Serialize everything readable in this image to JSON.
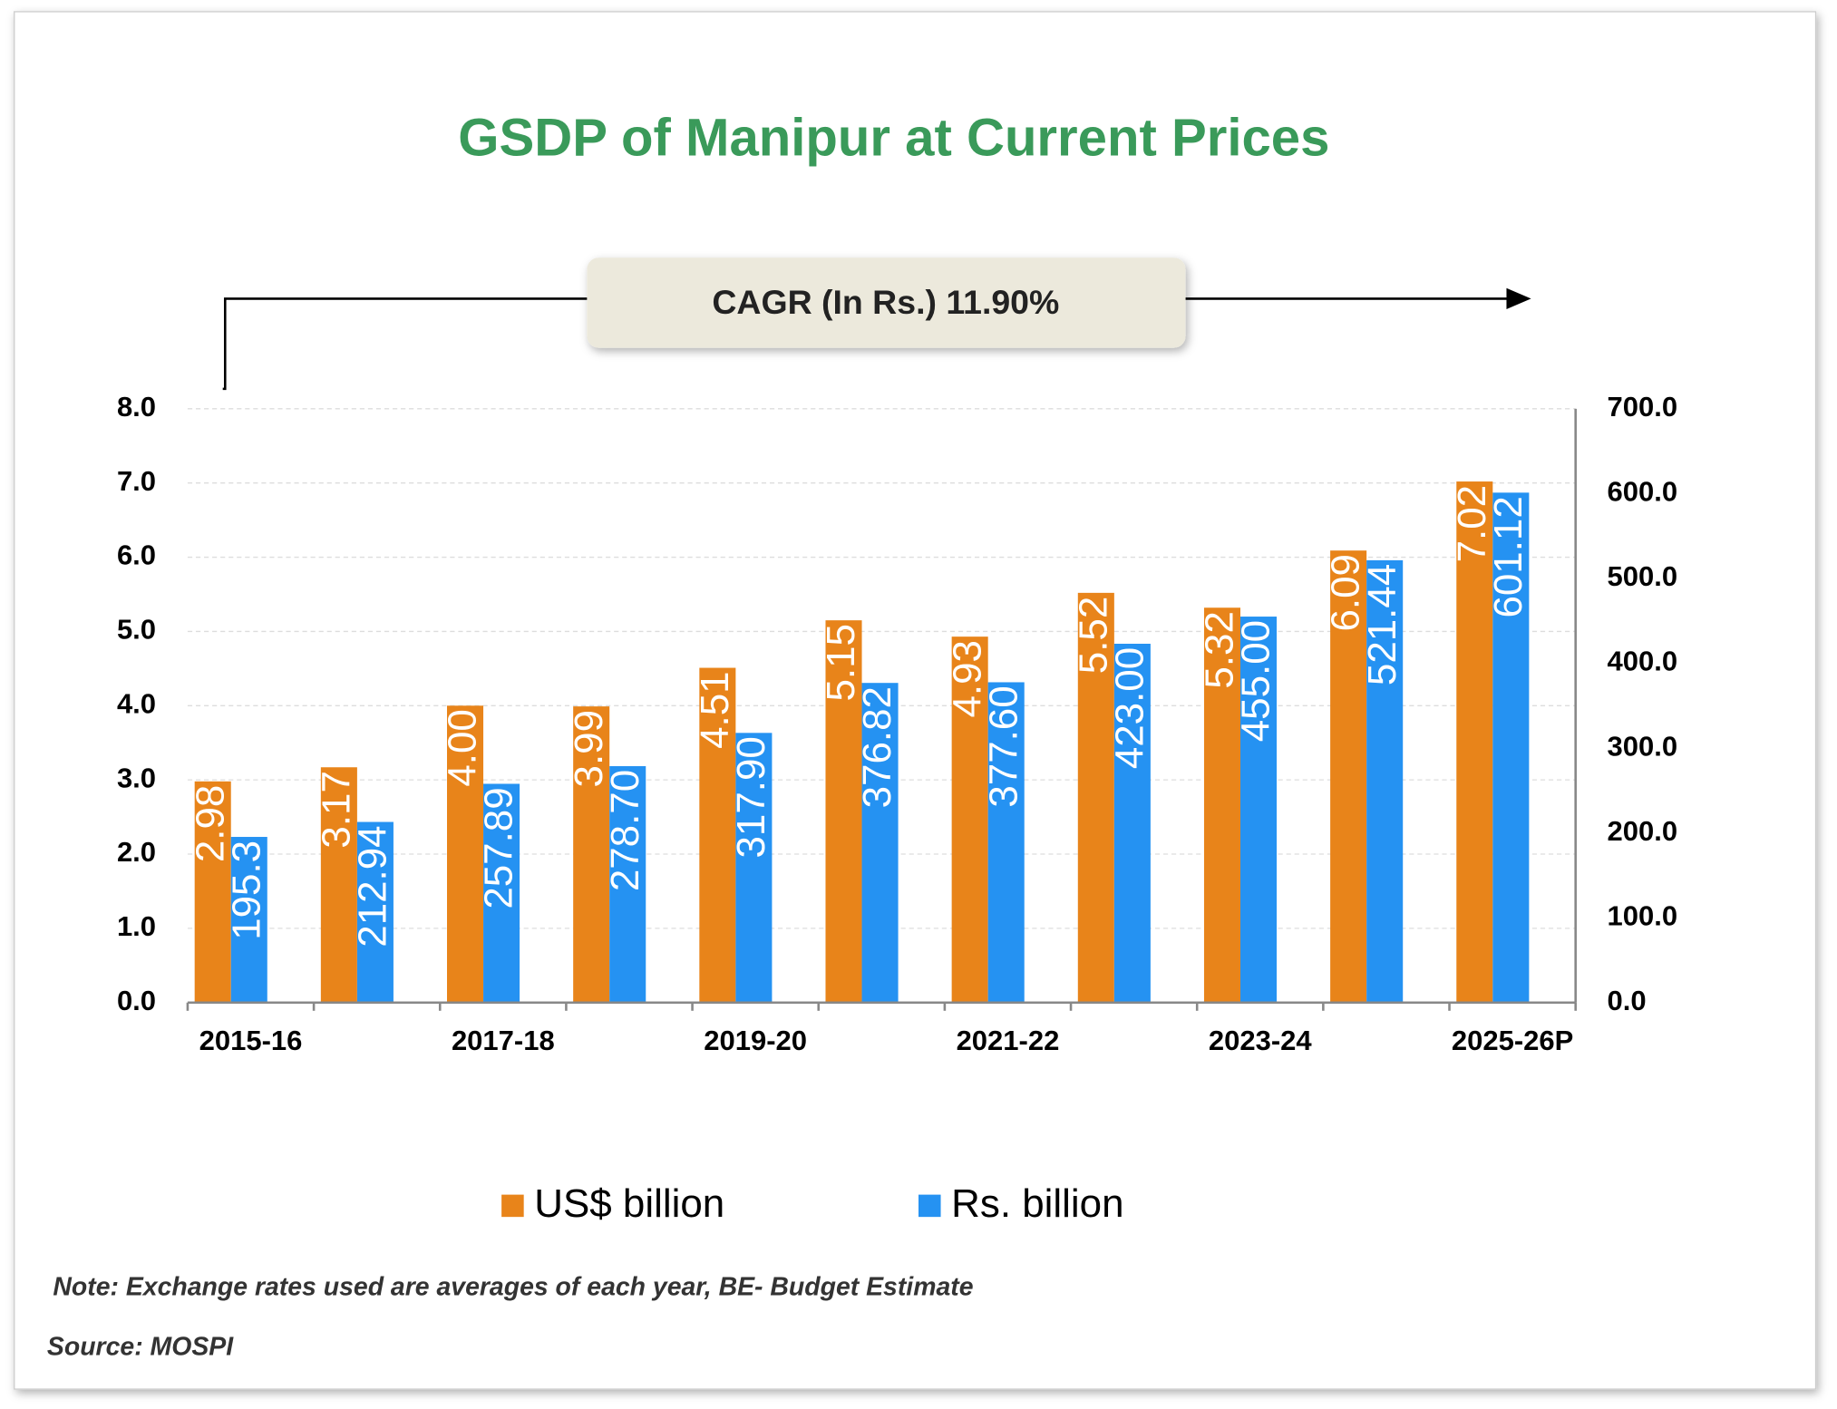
{
  "chart_data": {
    "type": "bar",
    "title": "GSDP of Manipur at Current Prices",
    "annotation": "CAGR (In Rs.) 11.90%",
    "categories": [
      "2015-16",
      null,
      "2017-18",
      null,
      "2019-20",
      null,
      "2021-22",
      null,
      "2023-24",
      null,
      "2025-26P"
    ],
    "series": [
      {
        "name": "US$ billion",
        "color": "#e8841a",
        "values": [
          2.98,
          3.17,
          4.0,
          3.99,
          4.51,
          5.15,
          4.93,
          5.52,
          5.32,
          6.09,
          7.02
        ],
        "value_labels": [
          "2.98",
          "3.17",
          "4.00",
          "3.99",
          "4.51",
          "5.15",
          "4.93",
          "5.52",
          "5.32",
          "6.09",
          "7.02"
        ]
      },
      {
        "name": "Rs. billion",
        "color": "#2592f2",
        "axis": "y2",
        "values": [
          195.3,
          212.94,
          257.89,
          278.7,
          317.9,
          376.82,
          377.6,
          423.0,
          455.0,
          521.44,
          601.12
        ],
        "value_labels": [
          "195.3",
          "212.94",
          "257.89",
          "278.70",
          "317.90",
          "376.82",
          "377.60",
          "423.00",
          "455.00",
          "521.44",
          "601.12"
        ]
      }
    ],
    "ylim": [
      0,
      8
    ],
    "yticks": [
      {
        "value": 0,
        "label": "0.0"
      },
      {
        "value": 1,
        "label": "1.0"
      },
      {
        "value": 2,
        "label": "2.0"
      },
      {
        "value": 3,
        "label": "3.0"
      },
      {
        "value": 4,
        "label": "4.0"
      },
      {
        "value": 5,
        "label": "5.0"
      },
      {
        "value": 6,
        "label": "6.0"
      },
      {
        "value": 7,
        "label": "7.0"
      },
      {
        "value": 8,
        "label": "8.0"
      }
    ],
    "y2lim": [
      0,
      700
    ],
    "y2ticks": [
      {
        "value": 0,
        "label": "0.0"
      },
      {
        "value": 100,
        "label": "100.0"
      },
      {
        "value": 200,
        "label": "200.0"
      },
      {
        "value": 300,
        "label": "300.0"
      },
      {
        "value": 400,
        "label": "400.0"
      },
      {
        "value": 500,
        "label": "500.0"
      },
      {
        "value": 600,
        "label": "600.0"
      },
      {
        "value": 700,
        "label": "700.0"
      }
    ],
    "grid": true,
    "legend": "bottom",
    "note": "Note: Exchange rates used are averages of each year, BE- Budget Estimate",
    "source": "Source: MOSPI"
  }
}
